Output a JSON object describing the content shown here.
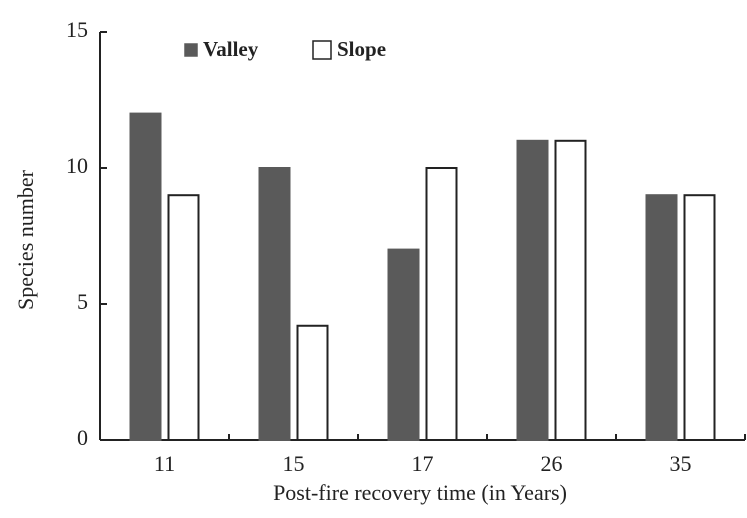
{
  "chart_data": {
    "type": "bar",
    "categories": [
      "11",
      "15",
      "17",
      "26",
      "35"
    ],
    "series": [
      {
        "name": "Valley",
        "color": "#5a5a5a",
        "values": [
          12,
          10,
          7,
          11,
          9
        ]
      },
      {
        "name": "Slope",
        "color": "#ffffff",
        "values": [
          9,
          4.2,
          10,
          11,
          9
        ]
      }
    ],
    "xlabel": "Post-fire recovery time (in Years)",
    "ylabel": "Species number",
    "ylim": [
      0,
      15
    ],
    "yticks": [
      0,
      5,
      10,
      15
    ],
    "legend": "top-left"
  }
}
